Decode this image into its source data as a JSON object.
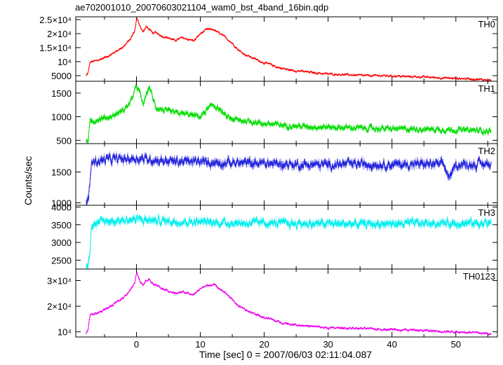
{
  "chart_data": {
    "type": "line",
    "title": "ae702001010_20070603021104_wam0_bst_4band_16bin.qdp",
    "xlabel": "Time [sec] 0 = 2007/06/03 02:11:04.087",
    "ylabel": "Counts/sec",
    "xlim": [
      -9.5,
      56.5
    ],
    "x_ticks": [
      0,
      10,
      20,
      30,
      40,
      50
    ],
    "x_tick_labels": [
      "0",
      "10",
      "20",
      "30",
      "40",
      "50"
    ],
    "grid": false,
    "panels": [
      {
        "name": "TH0",
        "color": "#ff0000",
        "ylim": [
          3000,
          26000
        ],
        "y_ticks": [
          5000,
          10000,
          15000,
          20000,
          25000
        ],
        "y_tick_labels": [
          "5000",
          "10⁴",
          "1.5×10⁴",
          "2×10⁴",
          "2.5×10⁴"
        ],
        "x": [
          -7.9,
          -7.6,
          -7.3,
          -6,
          -4,
          -2,
          -1,
          -0.3,
          0,
          0.5,
          1,
          1.5,
          2,
          2.5,
          3,
          4,
          5,
          6,
          7,
          8,
          9,
          10,
          11,
          12,
          13,
          14,
          15,
          16,
          17,
          18,
          19,
          20,
          21,
          22,
          24,
          26,
          28,
          30,
          32,
          34,
          36,
          38,
          40,
          42,
          44,
          46,
          48,
          50,
          52,
          54,
          55.5
        ],
        "y": [
          5000,
          6000,
          9800,
          10500,
          12500,
          15500,
          18000,
          21000,
          25500,
          23000,
          20500,
          22500,
          21500,
          20000,
          20500,
          19000,
          18500,
          17500,
          18500,
          18000,
          17500,
          20000,
          21500,
          21500,
          20000,
          18500,
          16500,
          14000,
          12500,
          11500,
          10500,
          9500,
          9000,
          8000,
          7000,
          6500,
          6000,
          5600,
          5400,
          5200,
          5000,
          5000,
          4900,
          4700,
          4600,
          4400,
          4200,
          4000,
          3900,
          3600,
          3400
        ],
        "noise": 600
      },
      {
        "name": "TH1",
        "color": "#00dd00",
        "ylim": [
          430,
          1750
        ],
        "y_ticks": [
          500,
          1000,
          1500
        ],
        "y_tick_labels": [
          "500",
          "1000",
          "1500"
        ],
        "x": [
          -7.9,
          -7.6,
          -7.3,
          -6,
          -4,
          -2,
          -1,
          0,
          0.5,
          1,
          1.5,
          2,
          2.5,
          3,
          4,
          5,
          6,
          8,
          10,
          11,
          12,
          13,
          14,
          15,
          16,
          18,
          20,
          25,
          30,
          35,
          40,
          45,
          50,
          55.5
        ],
        "y": [
          450,
          500,
          880,
          950,
          1000,
          1150,
          1300,
          1650,
          1500,
          1250,
          1450,
          1650,
          1400,
          1200,
          1150,
          1100,
          1080,
          1050,
          1000,
          1150,
          1250,
          1150,
          1000,
          950,
          920,
          900,
          850,
          800,
          780,
          760,
          740,
          740,
          720,
          700
        ],
        "noise": 90
      },
      {
        "name": "TH2",
        "color": "#2222dd",
        "ylim": [
          960,
          1960
        ],
        "y_ticks": [
          1000,
          1500
        ],
        "y_tick_labels": [
          "1000",
          "1500"
        ],
        "x": [
          -7.9,
          -7.6,
          -7.3,
          -7.1,
          -5,
          0,
          5,
          10,
          15,
          20,
          25,
          30,
          35,
          40,
          45,
          48,
          49,
          50,
          55.5
        ],
        "y": [
          980,
          1050,
          1300,
          1650,
          1700,
          1720,
          1680,
          1660,
          1650,
          1640,
          1620,
          1620,
          1630,
          1620,
          1630,
          1620,
          1400,
          1620,
          1630
        ],
        "noise": 110
      },
      {
        "name": "TH3",
        "color": "#00eeee",
        "ylim": [
          2250,
          4050
        ],
        "y_ticks": [
          2500,
          3000,
          3500,
          4000
        ],
        "y_tick_labels": [
          "2500",
          "3000",
          "3500",
          "4000"
        ],
        "x": [
          -7.9,
          -7.6,
          -7.3,
          -7.1,
          -5,
          0,
          5,
          10,
          15,
          20,
          25,
          30,
          35,
          40,
          45,
          50,
          55.5
        ],
        "y": [
          2300,
          2400,
          2800,
          3500,
          3600,
          3650,
          3600,
          3580,
          3550,
          3550,
          3530,
          3530,
          3520,
          3530,
          3540,
          3550,
          3540
        ],
        "noise": 170
      },
      {
        "name": "TH0123",
        "color": "#ee00ee",
        "ylim": [
          8000,
          34500
        ],
        "y_ticks": [
          10000,
          20000,
          30000
        ],
        "y_tick_labels": [
          "10⁴",
          "2×10⁴",
          "3×10⁴"
        ],
        "x": [
          -7.9,
          -7.6,
          -7.3,
          -6,
          -4,
          -2,
          -1,
          -0.3,
          0,
          0.5,
          1,
          1.5,
          2,
          2.5,
          3,
          4,
          5,
          6,
          7,
          8,
          9,
          10,
          11,
          12,
          13,
          14,
          15,
          16,
          17,
          18,
          19,
          20,
          21,
          22,
          24,
          26,
          28,
          30,
          32,
          34,
          36,
          38,
          40,
          42,
          44,
          46,
          48,
          50,
          52,
          54,
          55.5
        ],
        "y": [
          9500,
          11000,
          16500,
          17500,
          20000,
          23500,
          26500,
          29000,
          33000,
          30000,
          28000,
          30000,
          30500,
          29000,
          28500,
          27000,
          26000,
          25000,
          25500,
          25000,
          24500,
          27000,
          28000,
          28500,
          27000,
          25000,
          22500,
          20000,
          18500,
          17500,
          16500,
          15500,
          15000,
          14000,
          13000,
          12500,
          12000,
          11500,
          11500,
          11400,
          11200,
          11000,
          11000,
          10800,
          10600,
          10400,
          10200,
          10000,
          9800,
          9500,
          9200
        ],
        "noise": 700
      }
    ]
  }
}
